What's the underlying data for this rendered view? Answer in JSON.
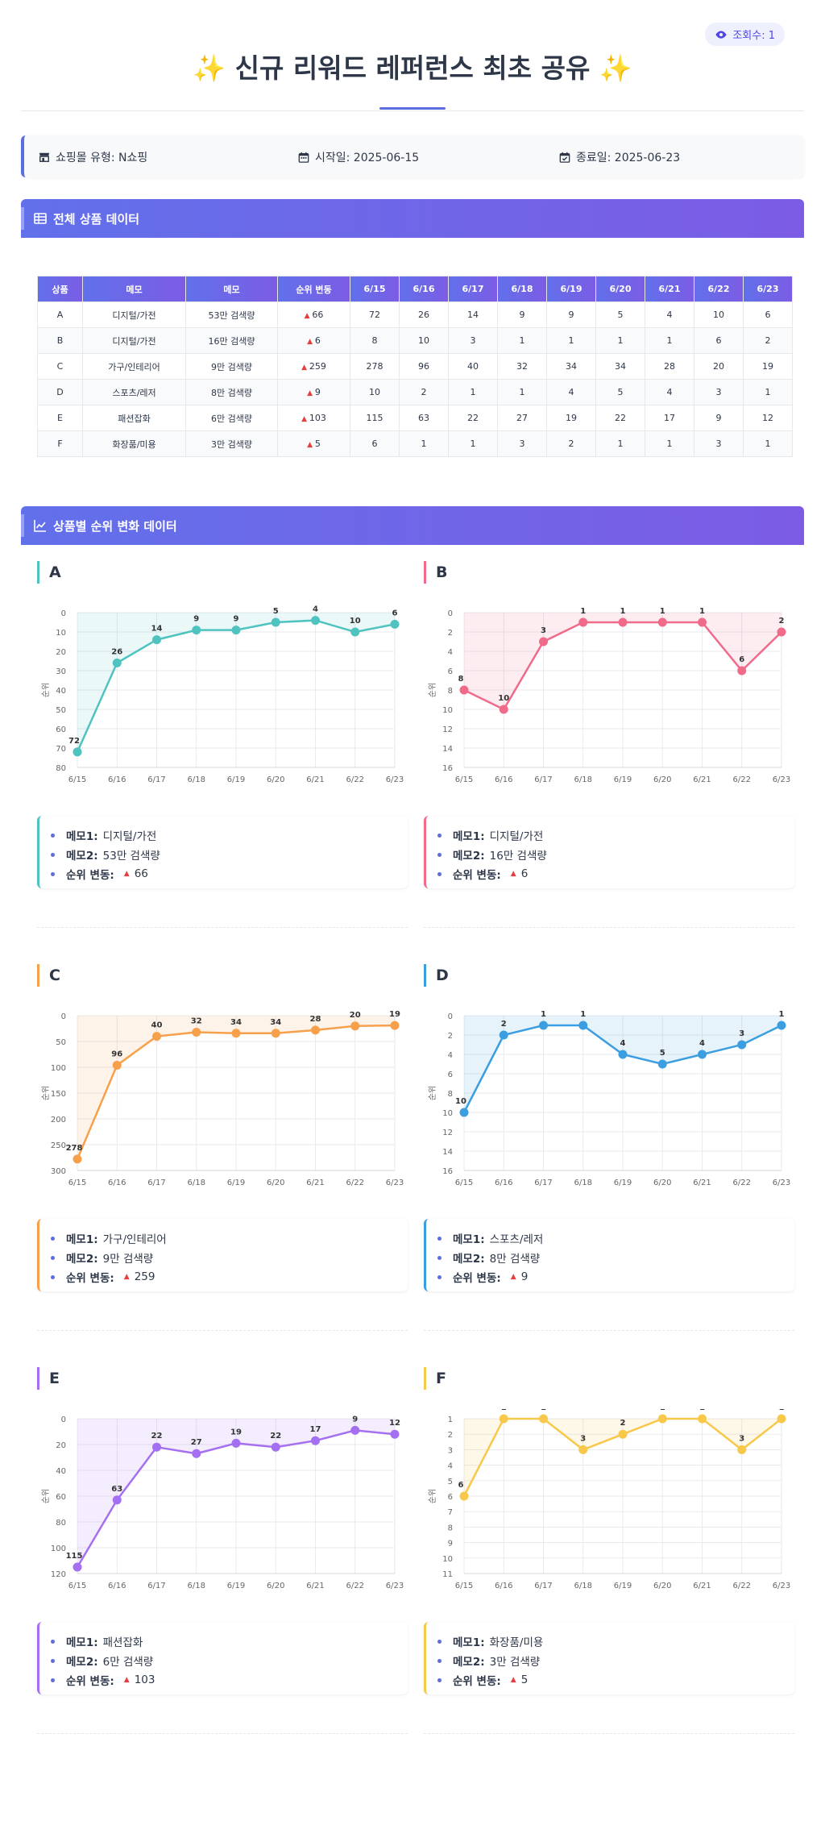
{
  "header": {
    "view_label": "조회수: 1",
    "title": "신규 리워드 레퍼런스 최초 공유",
    "spark": "✨"
  },
  "info": {
    "mall": "쇼핑몰 유형: N쇼핑",
    "start": "시작일: 2025-06-15",
    "end": "종료일: 2025-06-23"
  },
  "sections": {
    "table_title": "전체 상품 데이터",
    "charts_title": "상품별 순위 변화 데이터"
  },
  "table": {
    "headers": [
      "상품",
      "메모",
      "메모",
      "순위 변동",
      "6/15",
      "6/16",
      "6/17",
      "6/18",
      "6/19",
      "6/20",
      "6/21",
      "6/22",
      "6/23"
    ],
    "rows": [
      {
        "product": "A",
        "memo1": "디지털/가전",
        "memo2": "53만 검색량",
        "change": "66",
        "ranks": [
          "72",
          "26",
          "14",
          "9",
          "9",
          "5",
          "4",
          "10",
          "6"
        ]
      },
      {
        "product": "B",
        "memo1": "디지털/가전",
        "memo2": "16만 검색량",
        "change": "6",
        "ranks": [
          "8",
          "10",
          "3",
          "1",
          "1",
          "1",
          "1",
          "6",
          "2"
        ]
      },
      {
        "product": "C",
        "memo1": "가구/인테리어",
        "memo2": "9만 검색량",
        "change": "259",
        "ranks": [
          "278",
          "96",
          "40",
          "32",
          "34",
          "34",
          "28",
          "20",
          "19"
        ]
      },
      {
        "product": "D",
        "memo1": "스포츠/레저",
        "memo2": "8만 검색량",
        "change": "9",
        "ranks": [
          "10",
          "2",
          "1",
          "1",
          "4",
          "5",
          "4",
          "3",
          "1"
        ]
      },
      {
        "product": "E",
        "memo1": "패션잡화",
        "memo2": "6만 검색량",
        "change": "103",
        "ranks": [
          "115",
          "63",
          "22",
          "27",
          "19",
          "22",
          "17",
          "9",
          "12"
        ]
      },
      {
        "product": "F",
        "memo1": "화장품/미용",
        "memo2": "3만 검색량",
        "change": "5",
        "ranks": [
          "6",
          "1",
          "1",
          "3",
          "2",
          "1",
          "1",
          "3",
          "1"
        ]
      }
    ]
  },
  "memo_labels": {
    "memo1": "메모1:",
    "memo2": "메모2:",
    "change": "순위 변동:"
  },
  "chart_data": [
    {
      "type": "line",
      "title": "A",
      "ylabel": "순위",
      "x": [
        "6/15",
        "6/16",
        "6/17",
        "6/18",
        "6/19",
        "6/20",
        "6/21",
        "6/22",
        "6/23"
      ],
      "values": [
        72,
        26,
        14,
        9,
        9,
        5,
        4,
        10,
        6
      ],
      "ylim": [
        0,
        80
      ],
      "yticks": [
        0,
        10,
        20,
        30,
        40,
        50,
        60,
        70,
        80
      ],
      "color": "#4fc3c0",
      "reversed": true,
      "grid": true
    },
    {
      "type": "line",
      "title": "B",
      "ylabel": "순위",
      "x": [
        "6/15",
        "6/16",
        "6/17",
        "6/18",
        "6/19",
        "6/20",
        "6/21",
        "6/22",
        "6/23"
      ],
      "values": [
        8,
        10,
        3,
        1,
        1,
        1,
        1,
        6,
        2
      ],
      "ylim": [
        0,
        16
      ],
      "yticks": [
        0,
        2,
        4,
        6,
        8,
        10,
        12,
        14,
        16
      ],
      "color": "#f06a8a",
      "reversed": true,
      "grid": true
    },
    {
      "type": "line",
      "title": "C",
      "ylabel": "순위",
      "x": [
        "6/15",
        "6/16",
        "6/17",
        "6/18",
        "6/19",
        "6/20",
        "6/21",
        "6/22",
        "6/23"
      ],
      "values": [
        278,
        96,
        40,
        32,
        34,
        34,
        28,
        20,
        19
      ],
      "ylim": [
        0,
        300
      ],
      "yticks": [
        0,
        50,
        100,
        150,
        200,
        250,
        300
      ],
      "color": "#f7a04b",
      "reversed": true,
      "grid": true
    },
    {
      "type": "line",
      "title": "D",
      "ylabel": "순위",
      "x": [
        "6/15",
        "6/16",
        "6/17",
        "6/18",
        "6/19",
        "6/20",
        "6/21",
        "6/22",
        "6/23"
      ],
      "values": [
        10,
        2,
        1,
        1,
        4,
        5,
        4,
        3,
        1
      ],
      "ylim": [
        0,
        16
      ],
      "yticks": [
        0,
        2,
        4,
        6,
        8,
        10,
        12,
        14,
        16
      ],
      "color": "#3b9ee0",
      "reversed": true,
      "grid": true
    },
    {
      "type": "line",
      "title": "E",
      "ylabel": "순위",
      "x": [
        "6/15",
        "6/16",
        "6/17",
        "6/18",
        "6/19",
        "6/20",
        "6/21",
        "6/22",
        "6/23"
      ],
      "values": [
        115,
        63,
        22,
        27,
        19,
        22,
        17,
        9,
        12
      ],
      "ylim": [
        0,
        120
      ],
      "yticks": [
        0,
        20,
        40,
        60,
        80,
        100,
        120
      ],
      "color": "#a46ff0",
      "reversed": true,
      "grid": true
    },
    {
      "type": "line",
      "title": "F",
      "ylabel": "순위",
      "x": [
        "6/15",
        "6/16",
        "6/17",
        "6/18",
        "6/19",
        "6/20",
        "6/21",
        "6/22",
        "6/23"
      ],
      "values": [
        6,
        1,
        1,
        3,
        2,
        1,
        1,
        3,
        1
      ],
      "ylim": [
        1,
        11
      ],
      "yticks": [
        1,
        2,
        3,
        4,
        5,
        6,
        7,
        8,
        9,
        10,
        11
      ],
      "color": "#f8c84a",
      "reversed": true,
      "grid": true
    }
  ],
  "colors": {
    "accent": "#5b6ee1",
    "header_start": "#6270ea",
    "header_end": "#7c5ce5",
    "up": "#e53e3e"
  }
}
